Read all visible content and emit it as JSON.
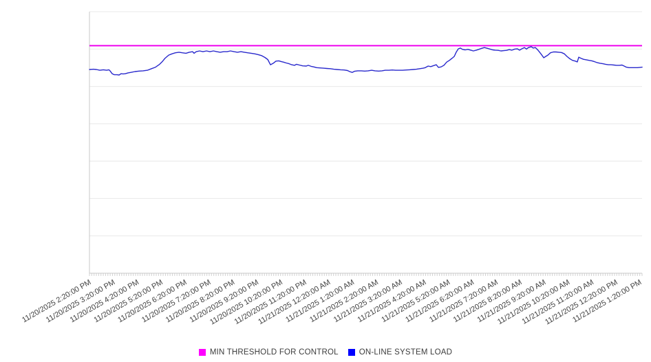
{
  "page": {
    "background": "#ffffff"
  },
  "colors": {
    "gridline": "#e8e8e8",
    "axis_line": "#c8c8c8",
    "tick": "#d2d2d2",
    "label_text": "#3f3f3f",
    "threshold_line": "#ee00ee",
    "load_line": "#2828cc"
  },
  "legend": {
    "items": [
      {
        "label": "MIN THRESHOLD FOR CONTROL",
        "color": "#ff00ff"
      },
      {
        "label": "ON-LINE SYSTEM LOAD",
        "color": "#0000ff"
      }
    ]
  },
  "chart_data": {
    "type": "line",
    "title": "",
    "xlabel": "",
    "ylabel": "",
    "grid": "horizontal gridlines only, 8 lines incl. top and bottom",
    "legend_position": "bottom-center",
    "y_axis": {
      "tick_labels": "none visible",
      "scale_note": "relative scale 0-100 = percent of plot height (no numeric y labels shown in chart)",
      "ylim": [
        0,
        100
      ]
    },
    "x_axis": {
      "start": "11/20/2025 2:20:00 PM",
      "end": "11/21/2025 1:20:00 PM",
      "tick_interval": "1 hour",
      "minor_tick_segments": 240,
      "label_rotation_deg": -30
    },
    "x_tick_labels": [
      "11/20/2025 2:20:00 PM",
      "11/20/2025 3:20:00 PM",
      "11/20/2025 4:20:00 PM",
      "11/20/2025 5:20:00 PM",
      "11/20/2025 6:20:00 PM",
      "11/20/2025 7:20:00 PM",
      "11/20/2025 8:20:00 PM",
      "11/20/2025 9:20:00 PM",
      "11/20/2025 10:20:00 PM",
      "11/20/2025 11:20:00 PM",
      "11/21/2025 12:20:00 AM",
      "11/21/2025 1:20:00 AM",
      "11/21/2025 2:20:00 AM",
      "11/21/2025 3:20:00 AM",
      "11/21/2025 4:20:00 AM",
      "11/21/2025 5:20:00 AM",
      "11/21/2025 6:20:00 AM",
      "11/21/2025 7:20:00 AM",
      "11/21/2025 8:20:00 AM",
      "11/21/2025 9:20:00 AM",
      "11/21/2025 10:20:00 AM",
      "11/21/2025 11:20:00 AM",
      "11/21/2025 12:20:00 PM",
      "11/21/2025 1:20:00 PM"
    ],
    "series": [
      {
        "name": "MIN THRESHOLD FOR CONTROL",
        "type": "constant-horizontal-line",
        "color": "#ee00ee",
        "value": 87.0
      },
      {
        "name": "ON-LINE SYSTEM LOAD",
        "type": "line",
        "color": "#2828cc",
        "x_unit": "hours since 11/20/2025 2:20:00 PM",
        "points": [
          [
            0,
            77.9
          ],
          [
            0.17,
            78
          ],
          [
            0.29,
            77.9
          ],
          [
            0.43,
            77.6
          ],
          [
            0.58,
            77.8
          ],
          [
            0.72,
            77.6
          ],
          [
            0.81,
            77.8
          ],
          [
            0.86,
            77.4
          ],
          [
            0.95,
            76.3
          ],
          [
            1.04,
            75.9
          ],
          [
            1.15,
            75.9
          ],
          [
            1.24,
            75.8
          ],
          [
            1.32,
            76.3
          ],
          [
            1.41,
            76.2
          ],
          [
            1.5,
            76.3
          ],
          [
            1.61,
            76.6
          ],
          [
            1.73,
            76.8
          ],
          [
            1.9,
            77.1
          ],
          [
            2.07,
            77.3
          ],
          [
            2.24,
            77.4
          ],
          [
            2.42,
            77.6
          ],
          [
            2.59,
            78.2
          ],
          [
            2.76,
            78.8
          ],
          [
            2.93,
            79.9
          ],
          [
            3.05,
            81
          ],
          [
            3.16,
            82.2
          ],
          [
            3.31,
            83.4
          ],
          [
            3.45,
            83.9
          ],
          [
            3.59,
            84.3
          ],
          [
            3.74,
            84.5
          ],
          [
            3.88,
            84.3
          ],
          [
            4.03,
            84.1
          ],
          [
            4.17,
            84.5
          ],
          [
            4.31,
            84.7
          ],
          [
            4.37,
            84.1
          ],
          [
            4.46,
            84.7
          ],
          [
            4.6,
            85
          ],
          [
            4.74,
            84.7
          ],
          [
            4.89,
            85
          ],
          [
            5.03,
            84.7
          ],
          [
            5.18,
            85
          ],
          [
            5.32,
            84.7
          ],
          [
            5.46,
            84.5
          ],
          [
            5.61,
            84.7
          ],
          [
            5.75,
            84.7
          ],
          [
            5.89,
            85
          ],
          [
            6.04,
            84.7
          ],
          [
            6.18,
            84.5
          ],
          [
            6.33,
            84.7
          ],
          [
            6.47,
            84.5
          ],
          [
            6.61,
            84.3
          ],
          [
            6.76,
            84.1
          ],
          [
            6.9,
            83.9
          ],
          [
            7.04,
            83.6
          ],
          [
            7.19,
            83.2
          ],
          [
            7.33,
            82.5
          ],
          [
            7.45,
            81.7
          ],
          [
            7.56,
            79.7
          ],
          [
            7.68,
            80.3
          ],
          [
            7.79,
            81.1
          ],
          [
            7.91,
            81.2
          ],
          [
            8.02,
            80.9
          ],
          [
            8.11,
            80.7
          ],
          [
            8.22,
            80.4
          ],
          [
            8.34,
            80.1
          ],
          [
            8.45,
            79.7
          ],
          [
            8.57,
            79.5
          ],
          [
            8.65,
            79.9
          ],
          [
            8.77,
            79.6
          ],
          [
            8.91,
            79.3
          ],
          [
            9.06,
            79.2
          ],
          [
            9.14,
            79.5
          ],
          [
            9.26,
            79.1
          ],
          [
            9.37,
            78.9
          ],
          [
            9.49,
            78.6
          ],
          [
            9.63,
            78.5
          ],
          [
            9.78,
            78.4
          ],
          [
            9.92,
            78.3
          ],
          [
            10.06,
            78.2
          ],
          [
            10.21,
            78
          ],
          [
            10.35,
            77.9
          ],
          [
            10.49,
            77.8
          ],
          [
            10.64,
            77.7
          ],
          [
            10.78,
            77.5
          ],
          [
            10.87,
            77.1
          ],
          [
            10.98,
            76.8
          ],
          [
            11.07,
            77.2
          ],
          [
            11.21,
            77.4
          ],
          [
            11.36,
            77.4
          ],
          [
            11.5,
            77.3
          ],
          [
            11.64,
            77.4
          ],
          [
            11.79,
            77.6
          ],
          [
            11.93,
            77.4
          ],
          [
            12.08,
            77.3
          ],
          [
            12.22,
            77.4
          ],
          [
            12.36,
            77.6
          ],
          [
            12.51,
            77.6
          ],
          [
            12.65,
            77.7
          ],
          [
            12.79,
            77.6
          ],
          [
            12.94,
            77.6
          ],
          [
            13.08,
            77.6
          ],
          [
            13.23,
            77.7
          ],
          [
            13.37,
            77.8
          ],
          [
            13.51,
            77.9
          ],
          [
            13.66,
            78
          ],
          [
            13.8,
            78.2
          ],
          [
            13.94,
            78.4
          ],
          [
            14.03,
            78.6
          ],
          [
            14.15,
            79.2
          ],
          [
            14.26,
            79
          ],
          [
            14.38,
            79.4
          ],
          [
            14.49,
            79.7
          ],
          [
            14.58,
            78.7
          ],
          [
            14.69,
            78.9
          ],
          [
            14.81,
            79.5
          ],
          [
            14.92,
            80.7
          ],
          [
            15.04,
            81.4
          ],
          [
            15.15,
            82.2
          ],
          [
            15.24,
            82.9
          ],
          [
            15.32,
            84.5
          ],
          [
            15.41,
            85.8
          ],
          [
            15.5,
            86.1
          ],
          [
            15.58,
            85.6
          ],
          [
            15.7,
            85.4
          ],
          [
            15.81,
            85.6
          ],
          [
            15.93,
            85.3
          ],
          [
            16.04,
            85
          ],
          [
            16.16,
            85.3
          ],
          [
            16.27,
            85.6
          ],
          [
            16.39,
            86
          ],
          [
            16.5,
            86.3
          ],
          [
            16.62,
            86
          ],
          [
            16.73,
            85.7
          ],
          [
            16.85,
            85.4
          ],
          [
            16.96,
            85.3
          ],
          [
            17.08,
            85.2
          ],
          [
            17.19,
            85
          ],
          [
            17.31,
            85.1
          ],
          [
            17.42,
            85.2
          ],
          [
            17.54,
            85.5
          ],
          [
            17.65,
            85.3
          ],
          [
            17.77,
            85.7
          ],
          [
            17.88,
            85.8
          ],
          [
            17.97,
            85.3
          ],
          [
            18.06,
            85.8
          ],
          [
            18.17,
            86.3
          ],
          [
            18.26,
            85.7
          ],
          [
            18.34,
            86.3
          ],
          [
            18.46,
            86.6
          ],
          [
            18.54,
            86.1
          ],
          [
            18.63,
            86.3
          ],
          [
            18.74,
            85.3
          ],
          [
            18.86,
            83.9
          ],
          [
            18.98,
            82.4
          ],
          [
            19.06,
            82.9
          ],
          [
            19.15,
            83.4
          ],
          [
            19.26,
            84.3
          ],
          [
            19.38,
            84.6
          ],
          [
            19.49,
            84.6
          ],
          [
            19.61,
            84.5
          ],
          [
            19.72,
            84.4
          ],
          [
            19.84,
            83.9
          ],
          [
            19.95,
            82.9
          ],
          [
            20.07,
            82
          ],
          [
            20.18,
            81.4
          ],
          [
            20.3,
            81.1
          ],
          [
            20.38,
            80.8
          ],
          [
            20.44,
            82.6
          ],
          [
            20.53,
            82.2
          ],
          [
            20.64,
            81.8
          ],
          [
            20.76,
            81.6
          ],
          [
            20.87,
            81.4
          ],
          [
            20.99,
            81.2
          ],
          [
            21.1,
            80.9
          ],
          [
            21.22,
            80.5
          ],
          [
            21.33,
            80.3
          ],
          [
            21.45,
            80.1
          ],
          [
            21.56,
            79.9
          ],
          [
            21.68,
            79.7
          ],
          [
            21.79,
            79.7
          ],
          [
            21.91,
            79.6
          ],
          [
            22.02,
            79.5
          ],
          [
            22.14,
            79.5
          ],
          [
            22.25,
            79.6
          ],
          [
            22.34,
            79.2
          ],
          [
            22.43,
            78.8
          ],
          [
            22.54,
            78.6
          ],
          [
            22.66,
            78.6
          ],
          [
            22.77,
            78.6
          ],
          [
            22.89,
            78.6
          ],
          [
            23,
            78.7
          ],
          [
            23.09,
            78.8
          ]
        ]
      }
    ]
  }
}
